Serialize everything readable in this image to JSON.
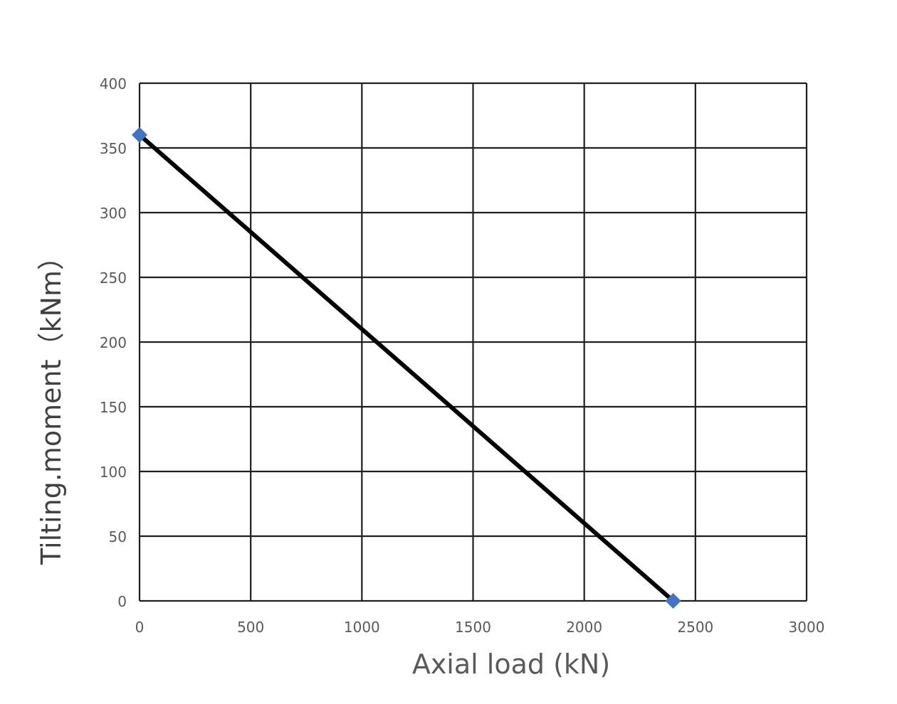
{
  "chart_data": {
    "type": "line",
    "title": "",
    "xlabel": "Axial load (kN)",
    "ylabel": "Tilting.moment（kNm）",
    "xlim": [
      0,
      3000
    ],
    "ylim": [
      0,
      400
    ],
    "x_ticks": [
      0,
      500,
      1000,
      1500,
      2000,
      2500,
      3000
    ],
    "y_ticks": [
      0,
      50,
      100,
      150,
      200,
      250,
      300,
      350,
      400
    ],
    "grid": true,
    "legend": "none",
    "series": [
      {
        "points": [
          {
            "x": 0,
            "y": 360
          },
          {
            "x": 2400,
            "y": 0
          }
        ],
        "line_color": "#000000",
        "marker": "diamond",
        "marker_color": "#4472C4"
      }
    ]
  }
}
